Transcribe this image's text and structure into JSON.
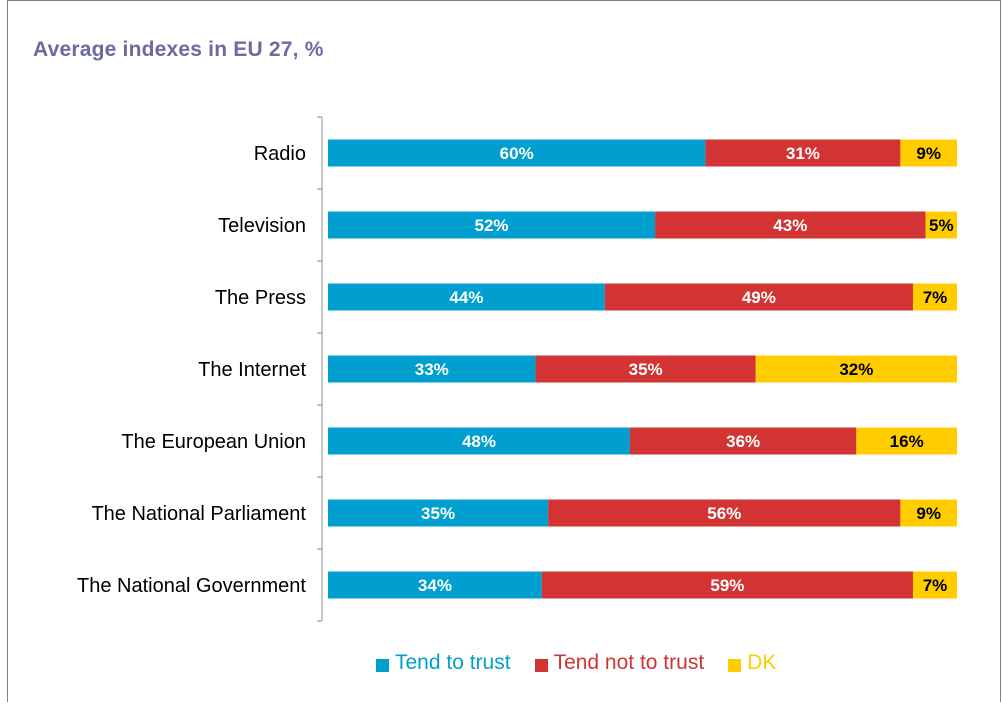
{
  "title": "Average indexes in EU 27, %",
  "colors": {
    "trust": "#009fcf",
    "not_trust": "#d23434",
    "dk": "#ffcc00",
    "trust_text": "#ffffff",
    "not_trust_text": "#ffffff",
    "dk_text": "#000000"
  },
  "chart_data": {
    "type": "bar",
    "orientation": "horizontal",
    "stacked": true,
    "title": "Average indexes in EU 27, %",
    "categories": [
      "Radio",
      "Television",
      "The Press",
      "The Internet",
      "The European Union",
      "The National Parliament",
      "The National Government"
    ],
    "series": [
      {
        "name": "Tend to trust",
        "values": [
          60,
          52,
          44,
          33,
          48,
          35,
          34
        ],
        "labels": [
          "60%",
          "52%",
          "44%",
          "33%",
          "48%",
          "35%",
          "34%"
        ]
      },
      {
        "name": "Tend not to trust",
        "values": [
          31,
          43,
          49,
          35,
          36,
          56,
          59
        ],
        "labels": [
          "31%",
          "43%",
          "49%",
          "35%",
          "36%",
          "56%",
          "59%"
        ]
      },
      {
        "name": "DK",
        "values": [
          9,
          5,
          7,
          32,
          16,
          9,
          7
        ],
        "labels": [
          "9%",
          "5%",
          "7%",
          "32%",
          "16%",
          "9%",
          "7%"
        ]
      }
    ],
    "xlim": [
      0,
      100
    ],
    "grid": false,
    "legend_position": "bottom"
  }
}
